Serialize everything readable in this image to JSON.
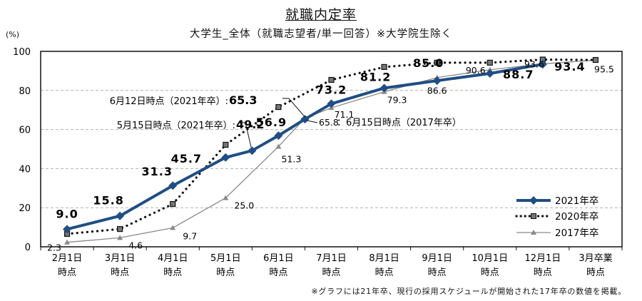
{
  "chart_data": {
    "type": "line",
    "title": "就職内定率",
    "subtitle": "大学生_全体（就職志望者/単一回答）※大学院生除く",
    "ylabel": "(%)",
    "xlabel": "",
    "ylim": [
      0,
      100
    ],
    "yticks": [
      0,
      20,
      40,
      60,
      80,
      100
    ],
    "grid": true,
    "legend_position": "bottom-right",
    "categories": [
      [
        "2月1日",
        "時点"
      ],
      [
        "3月1日",
        "時点"
      ],
      [
        "4月1日",
        "時点"
      ],
      [
        "5月1日",
        "時点"
      ],
      [
        "6月1日",
        "時点"
      ],
      [
        "7月1日",
        "時点"
      ],
      [
        "8月1日",
        "時点"
      ],
      [
        "9月1日",
        "時点"
      ],
      [
        "10月1日",
        "時点"
      ],
      [
        "12月1日",
        "時点"
      ],
      [
        "3月卒業",
        "時点"
      ]
    ],
    "series": [
      {
        "name": "2021年卒",
        "color": "#1f4e85",
        "x": [
          0,
          1,
          2,
          3,
          3.5,
          4,
          4.5,
          5,
          6,
          7,
          8,
          9
        ],
        "values": [
          9.0,
          15.8,
          31.3,
          45.7,
          49.2,
          56.9,
          65.3,
          73.2,
          81.2,
          85.0,
          88.7,
          93.4
        ]
      },
      {
        "name": "2020年卒",
        "color": "#111111",
        "x": [
          0,
          1,
          2,
          3,
          4,
          5,
          6,
          7,
          8,
          9,
          10
        ],
        "values": [
          6.6,
          9.1,
          21.9,
          52.2,
          71.5,
          85.4,
          92.0,
          94.2,
          94.2,
          95.8,
          95.6
        ]
      },
      {
        "name": "2017年卒",
        "color": "#8a8a8a",
        "x": [
          0,
          1,
          2,
          3,
          4,
          4.5,
          5,
          6,
          7,
          8,
          9,
          10
        ],
        "values": [
          2.3,
          4.6,
          9.7,
          25.0,
          51.3,
          65.8,
          71.1,
          79.3,
          86.6,
          90.6,
          93.6,
          95.5
        ]
      }
    ],
    "annotations": {
      "may15_2021": "5月15日時点（2021年卒）:",
      "jun12_2021": "6月12日時点（2021年卒）:",
      "jun15_2017": "：6月15日時点（2017年卒）"
    },
    "footnote": "※グラフには21年卒、現行の採用スケジュールが開始された17年卒の数値を掲載。"
  }
}
